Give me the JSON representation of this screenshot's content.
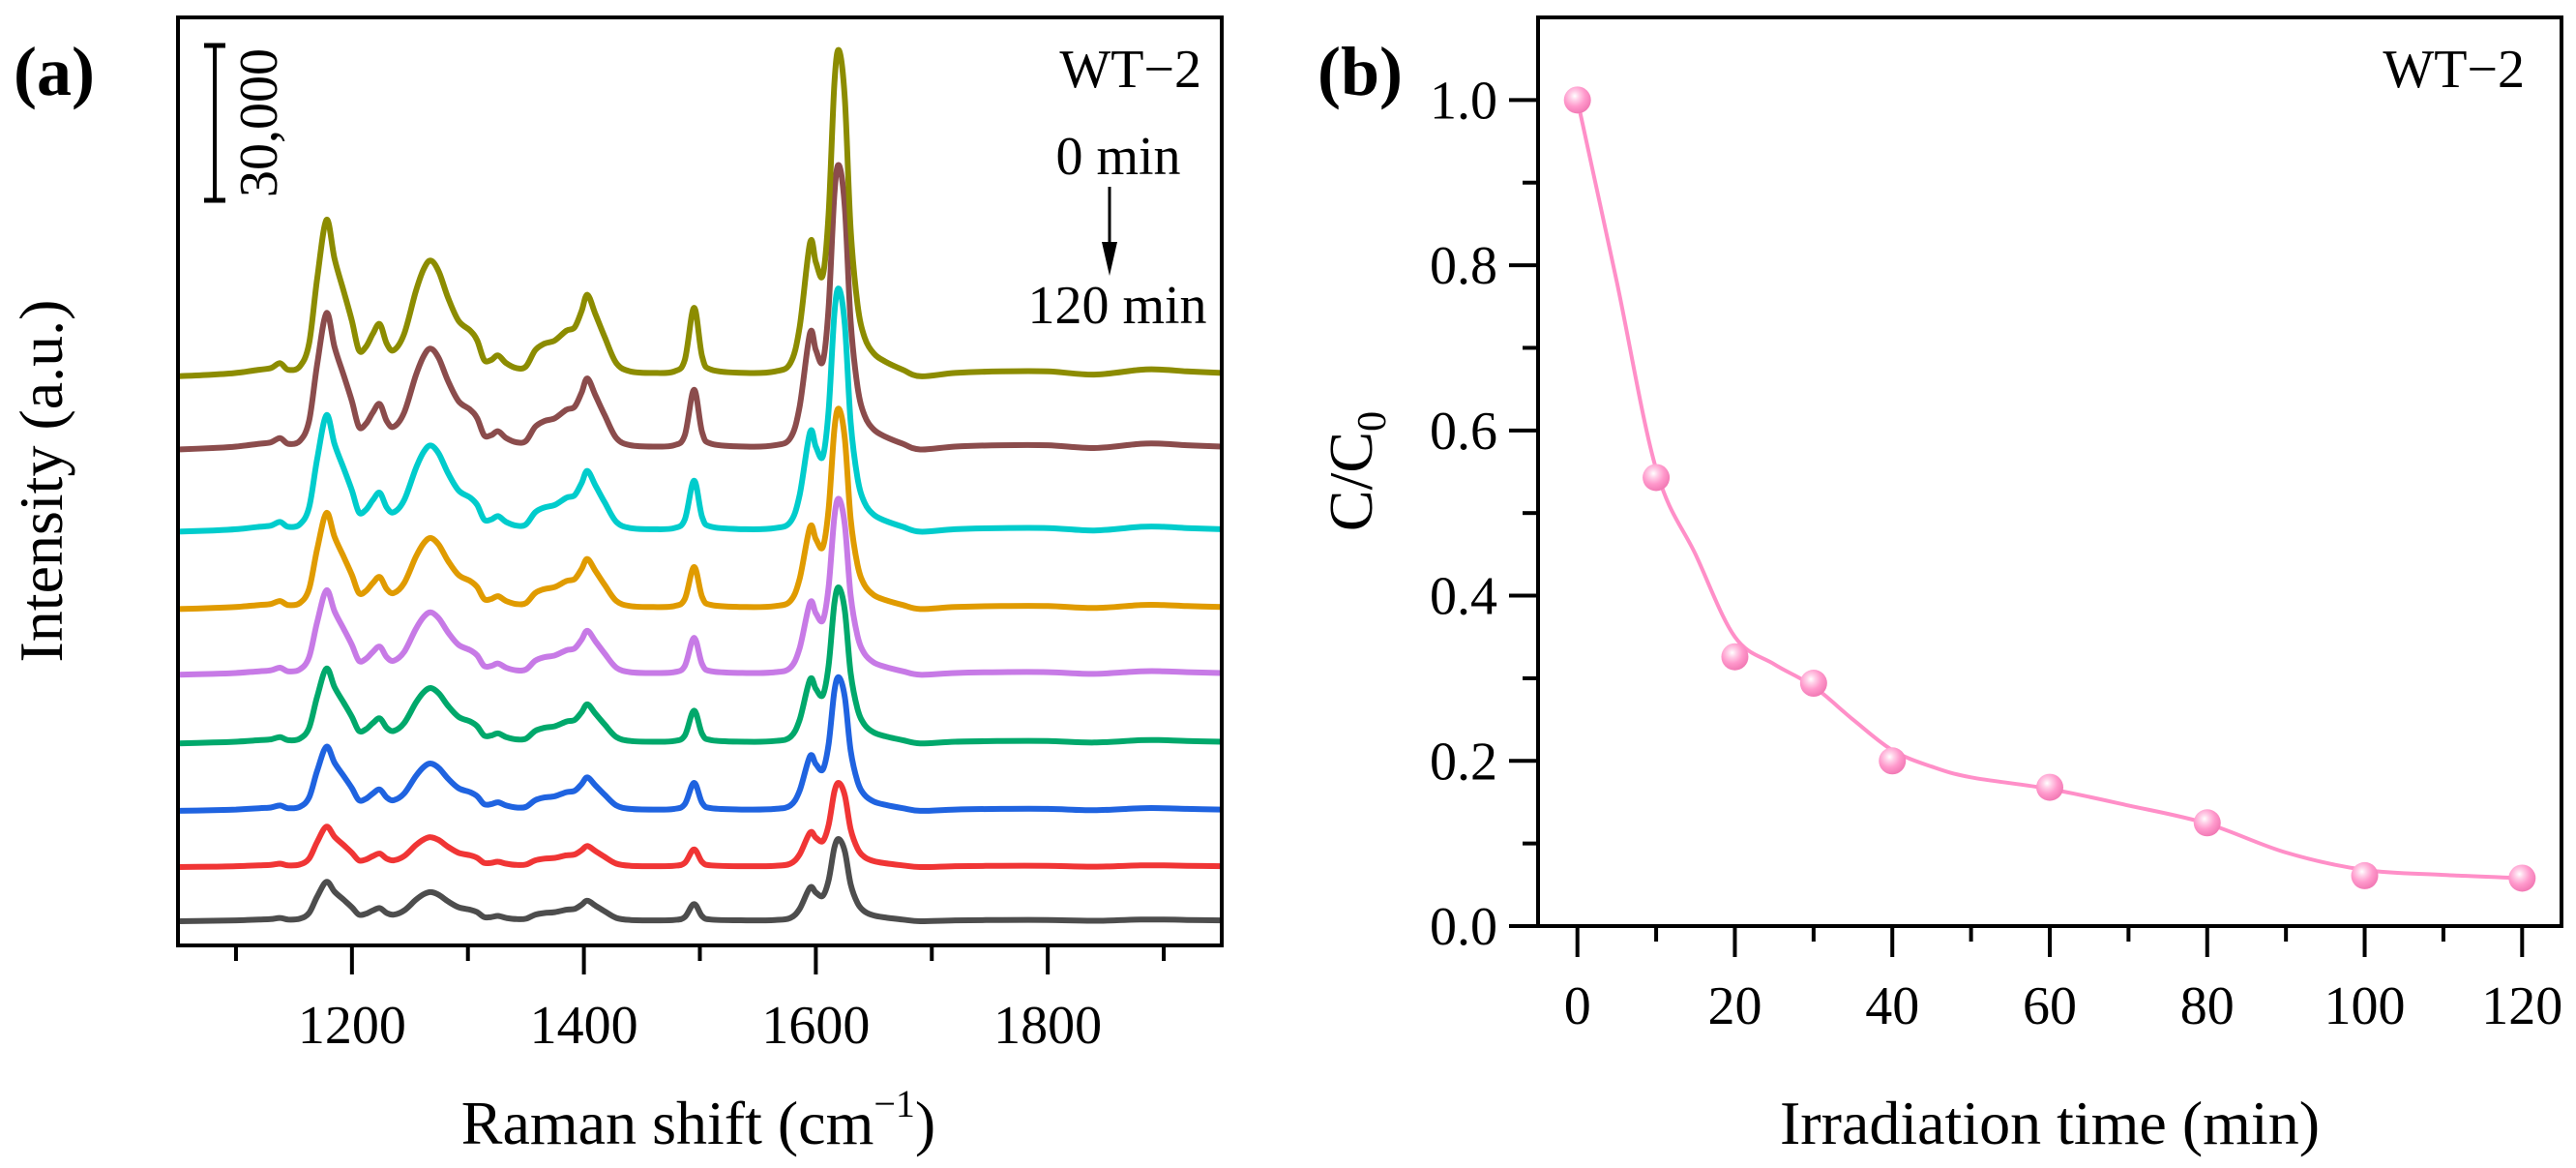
{
  "chart_data": [
    {
      "type": "line",
      "panel_label": "(a)",
      "annotation": "WT−2",
      "time_start_label": "0 min",
      "time_end_label": "120 min",
      "scale_bar_label": "30,000",
      "scale_bar_value": 30000,
      "xlabel": "Raman shift (cm",
      "xlabel_sup": "−1",
      "xlabel_end": ")",
      "ylabel": "Intensity (a.u.)",
      "xlim": [
        1050,
        1950
      ],
      "ylim": [
        0,
        180000
      ],
      "x_major_ticks": [
        1200,
        1400,
        1600,
        1800
      ],
      "x_minor_ticks": [
        1100,
        1300,
        1500,
        1700,
        1900
      ],
      "x": [
        1050,
        1080,
        1100,
        1120,
        1130,
        1138,
        1145,
        1155,
        1163,
        1170,
        1178,
        1185,
        1193,
        1200,
        1206,
        1212,
        1218,
        1224,
        1230,
        1236,
        1245,
        1255,
        1262,
        1268,
        1275,
        1283,
        1292,
        1302,
        1308,
        1314,
        1320,
        1326,
        1333,
        1342,
        1350,
        1358,
        1366,
        1375,
        1385,
        1392,
        1398,
        1403,
        1410,
        1418,
        1428,
        1440,
        1460,
        1478,
        1487,
        1495,
        1502,
        1510,
        1540,
        1565,
        1578,
        1586,
        1595,
        1600,
        1606,
        1611,
        1616,
        1620,
        1625,
        1630,
        1636,
        1642,
        1650,
        1660,
        1675,
        1690,
        1720,
        1760,
        1800,
        1840,
        1880,
        1900,
        1920,
        1950
      ],
      "profile": [
        0.0,
        0.005,
        0.01,
        0.02,
        0.025,
        0.04,
        0.02,
        0.03,
        0.1,
        0.3,
        0.48,
        0.36,
        0.26,
        0.17,
        0.08,
        0.09,
        0.13,
        0.16,
        0.1,
        0.08,
        0.13,
        0.26,
        0.33,
        0.355,
        0.32,
        0.24,
        0.17,
        0.14,
        0.11,
        0.05,
        0.05,
        0.064,
        0.04,
        0.025,
        0.03,
        0.08,
        0.1,
        0.11,
        0.14,
        0.15,
        0.2,
        0.25,
        0.19,
        0.12,
        0.04,
        0.015,
        0.01,
        0.015,
        0.05,
        0.21,
        0.06,
        0.02,
        0.01,
        0.015,
        0.04,
        0.15,
        0.41,
        0.35,
        0.31,
        0.5,
        0.9,
        1.0,
        0.85,
        0.45,
        0.22,
        0.12,
        0.07,
        0.045,
        0.02,
        0.0,
        0.01,
        0.015,
        0.015,
        0.005,
        0.02,
        0.02,
        0.015,
        0.01
      ],
      "series": [
        {
          "color": "#8c8c00",
          "offset": 110400,
          "peak_intensity": 63200
        },
        {
          "color": "#8b4c4c",
          "offset": 96200,
          "peak_intensity": 55100
        },
        {
          "color": "#00cccc",
          "offset": 80250,
          "peak_intensity": 47100
        },
        {
          "color": "#e09b00",
          "offset": 65250,
          "peak_intensity": 38800
        },
        {
          "color": "#c77ae6",
          "offset": 52500,
          "peak_intensity": 34100
        },
        {
          "color": "#00a86b",
          "offset": 39200,
          "peak_intensity": 30200
        },
        {
          "color": "#1f63e0",
          "offset": 26100,
          "peak_intensity": 25900
        },
        {
          "color": "#f03535",
          "offset": 15200,
          "peak_intensity": 16300
        },
        {
          "color": "#4d4d4d",
          "offset": 4700,
          "peak_intensity": 15900
        }
      ]
    },
    {
      "type": "scatter",
      "panel_label": "(b)",
      "annotation": "WT−2",
      "xlabel": "Irradiation time (min)",
      "ylabel": "C/C",
      "ylabel_sub": "0",
      "xlim": [
        -5,
        125
      ],
      "ylim": [
        0,
        1.1
      ],
      "x_major_ticks": [
        0,
        20,
        40,
        60,
        80,
        100,
        120
      ],
      "x_minor_ticks": [
        10,
        30,
        50,
        70,
        90,
        110
      ],
      "y_major_ticks": [
        "0.0",
        "0.2",
        "0.4",
        "0.6",
        "0.8",
        "1.0"
      ],
      "y_minor_ticks": [
        0.1,
        0.3,
        0.5,
        0.7,
        0.9
      ],
      "color": "#ff8fc8",
      "points": {
        "x": [
          0,
          10,
          20,
          30,
          40,
          60,
          80,
          100,
          120
        ],
        "y": [
          1.0,
          0.543,
          0.326,
          0.294,
          0.2,
          0.168,
          0.125,
          0.061,
          0.058
        ]
      },
      "fit": {
        "x": [
          0,
          5,
          10,
          15,
          20,
          25,
          30,
          35,
          40,
          45,
          50,
          60,
          70,
          80,
          90,
          100,
          110,
          120
        ],
        "y": [
          1.0,
          0.78,
          0.553,
          0.45,
          0.35,
          0.317,
          0.29,
          0.25,
          0.213,
          0.193,
          0.18,
          0.166,
          0.146,
          0.124,
          0.089,
          0.068,
          0.062,
          0.058
        ]
      }
    }
  ]
}
